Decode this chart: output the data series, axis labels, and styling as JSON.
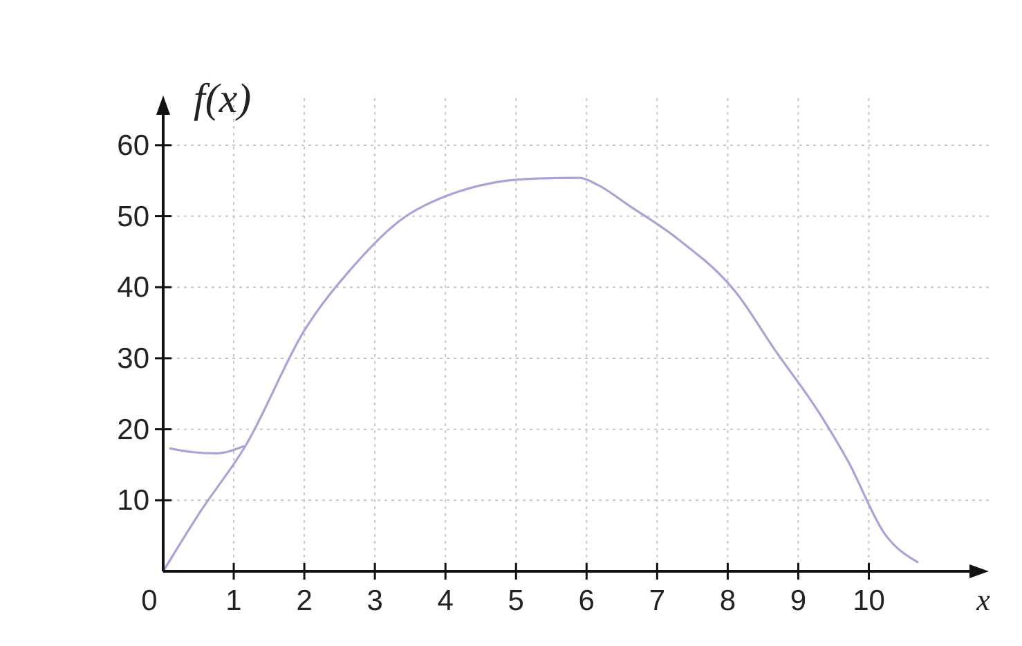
{
  "chart_data": {
    "type": "line",
    "xlabel": "x",
    "ylabel": "f(x)",
    "xlim": [
      0,
      11.7
    ],
    "ylim": [
      0,
      67
    ],
    "xticks": [
      0,
      1,
      2,
      3,
      4,
      5,
      6,
      7,
      8,
      9,
      10
    ],
    "yticks": [
      10,
      20,
      30,
      40,
      50,
      60
    ],
    "grid": true,
    "marker": "none",
    "line_style": "solid",
    "series": [
      {
        "color": "#a9a3d6",
        "x": [
          0,
          0.5,
          1.18,
          2.0,
          2.7,
          3.37,
          4.0,
          4.67,
          5.3,
          5.9,
          6.16,
          6.6,
          7.28,
          8.13,
          8.66,
          9.31,
          9.7,
          10.23,
          10.69
        ],
        "values": [
          0,
          8,
          17.9,
          33.9,
          43,
          49.5,
          52.8,
          54.7,
          55.3,
          55.4,
          54.4,
          51.5,
          46.9,
          39.1,
          31.3,
          22.1,
          15.6,
          5.2,
          1.3
        ]
      },
      {
        "color": "#a9a3d6",
        "x": [
          0.1,
          0.4,
          0.75,
          1.14
        ],
        "values": [
          17.3,
          16.8,
          16.6,
          17.6
        ]
      }
    ]
  }
}
